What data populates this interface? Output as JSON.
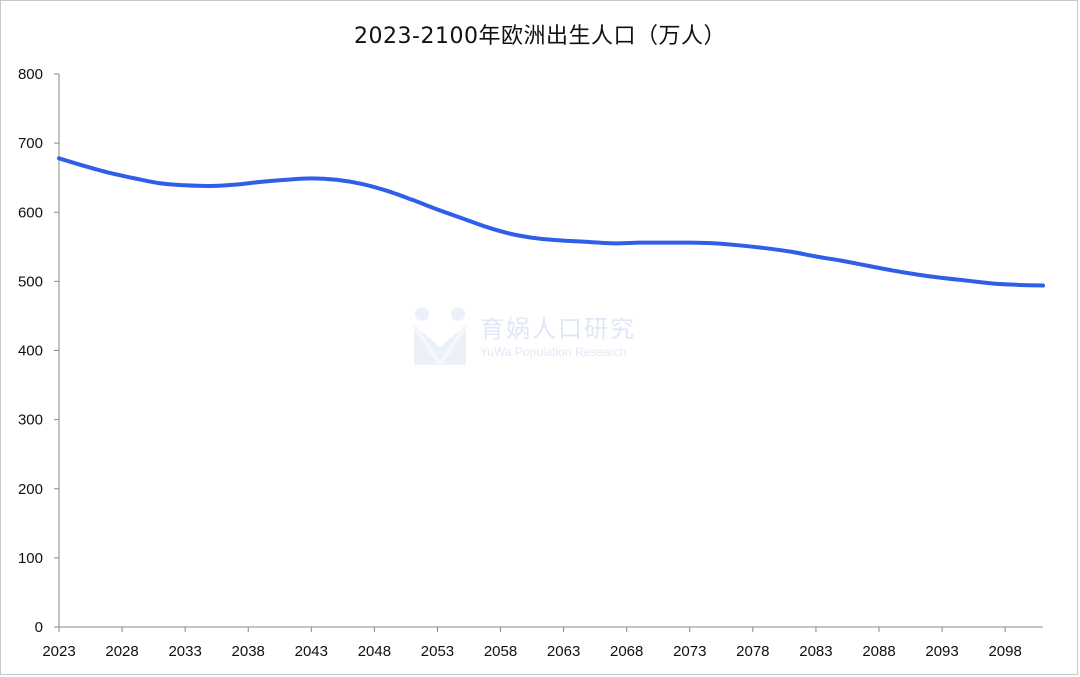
{
  "chart_data": {
    "type": "line",
    "title": "2023-2100年欧洲出生人口（万人）",
    "xlabel": "",
    "ylabel": "",
    "ylim": [
      0,
      800
    ],
    "yticks": [
      0,
      100,
      200,
      300,
      400,
      500,
      600,
      700,
      800
    ],
    "x_tick_labels": [
      "2023",
      "2028",
      "2033",
      "2038",
      "2043",
      "2048",
      "2053",
      "2058",
      "2063",
      "2068",
      "2073",
      "2078",
      "2083",
      "2088",
      "2093",
      "2098"
    ],
    "grid": false,
    "legend": "none",
    "series": [
      {
        "color": "#2f5fe8",
        "x": [
          2023,
          2025,
          2027,
          2029,
          2031,
          2033,
          2035,
          2037,
          2039,
          2041,
          2043,
          2045,
          2047,
          2049,
          2051,
          2053,
          2055,
          2057,
          2059,
          2061,
          2063,
          2065,
          2067,
          2069,
          2071,
          2073,
          2075,
          2077,
          2079,
          2081,
          2083,
          2085,
          2087,
          2089,
          2091,
          2093,
          2095,
          2097,
          2099,
          2101
        ],
        "values": [
          678,
          667,
          657,
          649,
          642,
          639,
          638,
          640,
          644,
          647,
          649,
          647,
          641,
          631,
          618,
          604,
          591,
          578,
          568,
          562,
          559,
          557,
          555,
          556,
          556,
          556,
          555,
          552,
          548,
          543,
          536,
          530,
          523,
          516,
          510,
          505,
          501,
          497,
          495,
          494
        ]
      }
    ]
  },
  "watermark": {
    "name_cn": "育娲人口研究",
    "name_en": "YuWa Population Research"
  }
}
